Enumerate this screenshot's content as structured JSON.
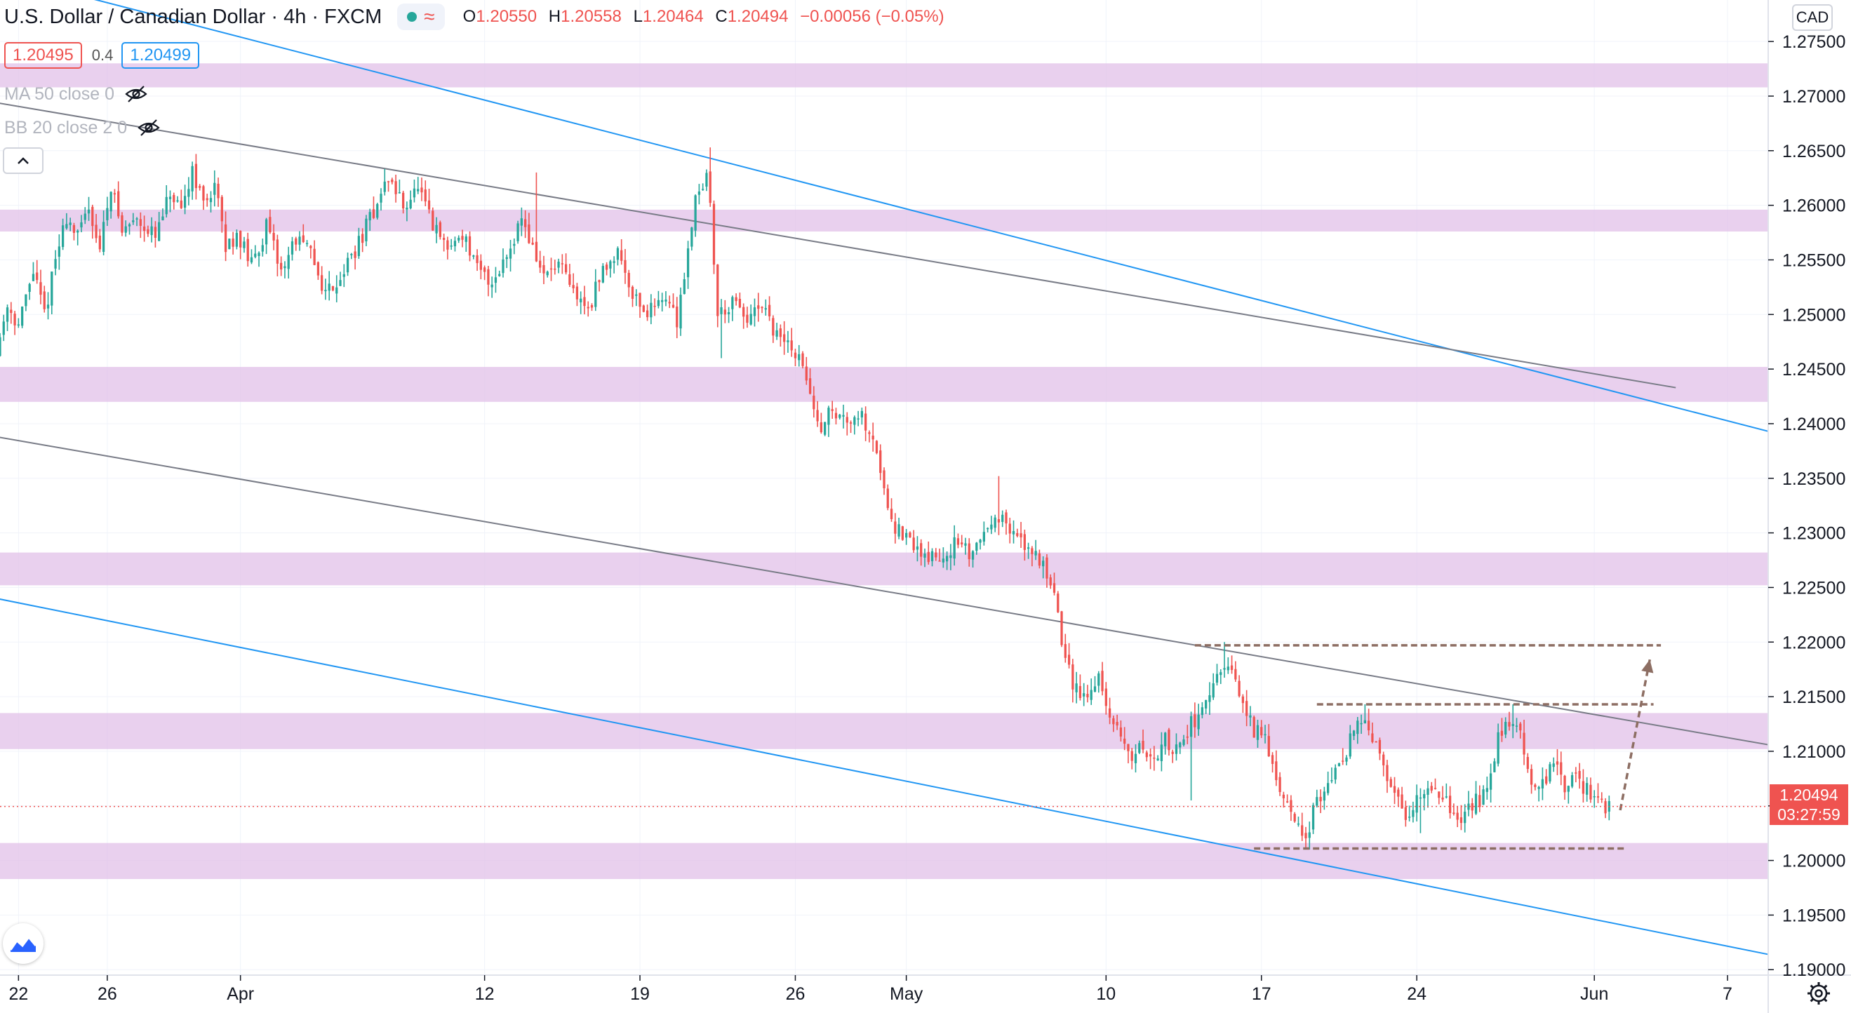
{
  "header": {
    "title": "U.S. Dollar / Canadian Dollar · 4h · FXCM",
    "ohlc": [
      {
        "k": "O",
        "v": "1.20550"
      },
      {
        "k": "H",
        "v": "1.20558"
      },
      {
        "k": "L",
        "v": "1.20464"
      },
      {
        "k": "C",
        "v": "1.20494"
      },
      {
        "k": "",
        "v": "−0.00056 (−0.05%)"
      }
    ],
    "bid": "1.20495",
    "spread": "0.4",
    "ask": "1.20499"
  },
  "indicators": [
    {
      "name": "MA 50 close 0"
    },
    {
      "name": "BB 20 close 2 0"
    }
  ],
  "currency": "CAD",
  "price_label": {
    "price": "1.20494",
    "countdown": "03:27:59"
  },
  "colors": {
    "up": "#26a69a",
    "down": "#ef5350",
    "zone": "#e1bee7",
    "blue_line": "#2196f3",
    "grey_line": "#787b86",
    "dashed": "#8d6e63"
  },
  "chart_data": {
    "type": "candlestick",
    "symbol": "USDCAD",
    "timeframe": "4h",
    "y_ticks": [
      "1.27500",
      "1.27000",
      "1.26500",
      "1.26000",
      "1.25500",
      "1.25000",
      "1.24500",
      "1.24000",
      "1.23500",
      "1.23000",
      "1.22500",
      "1.22000",
      "1.21500",
      "1.21000",
      "1.20500",
      "1.20000",
      "1.19500",
      "1.19000"
    ],
    "ylim": [
      1.1895,
      1.2788
    ],
    "x_range": [
      "2021-03-21T04:00",
      "2021-06-08T20:00"
    ],
    "x_ticks": [
      {
        "label": "22",
        "date": "2021-03-22"
      },
      {
        "label": "26",
        "date": "2021-03-26"
      },
      {
        "label": "Apr",
        "date": "2021-04-01"
      },
      {
        "label": "12",
        "date": "2021-04-12"
      },
      {
        "label": "19",
        "date": "2021-04-19"
      },
      {
        "label": "26",
        "date": "2021-04-26"
      },
      {
        "label": "May",
        "date": "2021-05-01"
      },
      {
        "label": "10",
        "date": "2021-05-10"
      },
      {
        "label": "17",
        "date": "2021-05-17"
      },
      {
        "label": "24",
        "date": "2021-05-24"
      },
      {
        "label": "Jun",
        "date": "2021-06-01"
      },
      {
        "label": "7",
        "date": "2021-06-07"
      }
    ],
    "zones": [
      {
        "from": 1.2708,
        "to": 1.273
      },
      {
        "from": 1.2576,
        "to": 1.2596
      },
      {
        "from": 1.242,
        "to": 1.2452
      },
      {
        "from": 1.2252,
        "to": 1.2282
      },
      {
        "from": 1.2102,
        "to": 1.2135
      },
      {
        "from": 1.1983,
        "to": 1.2016
      }
    ],
    "trendlines": [
      {
        "style": "blue",
        "from": {
          "x": "2021-03-20",
          "y": 1.2817
        },
        "to": {
          "x": "2021-06-08T20:00",
          "y": 1.2393
        }
      },
      {
        "style": "blue",
        "from": {
          "x": "2021-03-21",
          "y": 1.224
        },
        "to": {
          "x": "2021-06-08T20:00",
          "y": 1.1914
        }
      },
      {
        "style": "grey",
        "from": {
          "x": "2021-03-21",
          "y": 1.2694
        },
        "to": {
          "x": "2021-06-04T16:00",
          "y": 1.2433
        }
      },
      {
        "style": "grey",
        "from": {
          "x": "2021-03-21",
          "y": 1.2388
        },
        "to": {
          "x": "2021-06-08T20:00",
          "y": 1.2106
        }
      }
    ],
    "dashed_levels": [
      {
        "y": 1.2197,
        "from": "2021-05-14",
        "to": "2021-06-04"
      },
      {
        "y": 1.2143,
        "from": "2021-05-19T12:00",
        "to": "2021-06-03T16:00"
      },
      {
        "y": 1.2011,
        "from": "2021-05-16T16:00",
        "to": "2021-06-02T08:00"
      }
    ],
    "projection": {
      "from": {
        "x": "2021-06-02T04:00",
        "y": 1.2046
      },
      "to": {
        "x": "2021-06-03T12:00",
        "y": 1.2184
      }
    },
    "last_price": 1.20494,
    "path": [
      [
        "2021-03-21T04:00",
        1.2465
      ],
      [
        "2021-03-21T16:00",
        1.251
      ],
      [
        "2021-03-22T04:00",
        1.249
      ],
      [
        "2021-03-22T20:00",
        1.254
      ],
      [
        "2021-03-23T08:00",
        1.25
      ],
      [
        "2021-03-23T20:00",
        1.255
      ],
      [
        "2021-03-24T08:00",
        1.259
      ],
      [
        "2021-03-24T20:00",
        1.257
      ],
      [
        "2021-03-25T08:00",
        1.26
      ],
      [
        "2021-03-25T20:00",
        1.256
      ],
      [
        "2021-03-26T08:00",
        1.262
      ],
      [
        "2021-03-26T20:00",
        1.2575
      ],
      [
        "2021-03-27T12:00",
        1.259
      ],
      [
        "2021-03-28T08:00",
        1.257
      ],
      [
        "2021-03-29T00:00",
        1.261
      ],
      [
        "2021-03-29T12:00",
        1.259
      ],
      [
        "2021-03-30T00:00",
        1.2635
      ],
      [
        "2021-03-30T12:00",
        1.26
      ],
      [
        "2021-03-31T00:00",
        1.262
      ],
      [
        "2021-03-31T12:00",
        1.256
      ],
      [
        "2021-04-01T00:00",
        1.2575
      ],
      [
        "2021-04-01T16:00",
        1.2545
      ],
      [
        "2021-04-02T08:00",
        1.258
      ],
      [
        "2021-04-03T00:00",
        1.254
      ],
      [
        "2021-04-03T16:00",
        1.257
      ],
      [
        "2021-04-04T08:00",
        1.2555
      ],
      [
        "2021-04-05T00:00",
        1.252
      ],
      [
        "2021-04-05T16:00",
        1.2535
      ],
      [
        "2021-04-06T12:00",
        1.2565
      ],
      [
        "2021-04-07T04:00",
        1.2595
      ],
      [
        "2021-04-07T20:00",
        1.2625
      ],
      [
        "2021-04-08T12:00",
        1.26
      ],
      [
        "2021-04-09T04:00",
        1.2615
      ],
      [
        "2021-04-09T20:00",
        1.258
      ],
      [
        "2021-04-10T12:00",
        1.256
      ],
      [
        "2021-04-11T04:00",
        1.2575
      ],
      [
        "2021-04-11T20:00",
        1.254
      ],
      [
        "2021-04-12T12:00",
        1.253
      ],
      [
        "2021-04-13T04:00",
        1.2555
      ],
      [
        "2021-04-13T20:00",
        1.259
      ],
      [
        "2021-04-14T08:00",
        1.256
      ],
      [
        "2021-04-14T20:00",
        1.2535
      ],
      [
        "2021-04-15T12:00",
        1.2545
      ],
      [
        "2021-04-16T04:00",
        1.252
      ],
      [
        "2021-04-16T20:00",
        1.2505
      ],
      [
        "2021-04-17T12:00",
        1.254
      ],
      [
        "2021-04-18T04:00",
        1.256
      ],
      [
        "2021-04-18T20:00",
        1.252
      ],
      [
        "2021-04-19T12:00",
        1.25
      ],
      [
        "2021-04-20T04:00",
        1.252
      ],
      [
        "2021-04-20T20:00",
        1.2495
      ],
      [
        "2021-04-21T08:00",
        1.256
      ],
      [
        "2021-04-21T16:00",
        1.261
      ],
      [
        "2021-04-22T04:00",
        1.2625
      ],
      [
        "2021-04-22T08:00",
        1.26
      ],
      [
        "2021-04-22T16:00",
        1.25
      ],
      [
        "2021-04-23T08:00",
        1.251
      ],
      [
        "2021-04-24T00:00",
        1.2495
      ],
      [
        "2021-04-24T16:00",
        1.2505
      ],
      [
        "2021-04-25T08:00",
        1.248
      ],
      [
        "2021-04-26T00:00",
        1.247
      ],
      [
        "2021-04-26T16:00",
        1.2445
      ],
      [
        "2021-04-27T04:00",
        1.2395
      ],
      [
        "2021-04-27T16:00",
        1.241
      ],
      [
        "2021-04-28T08:00",
        1.2405
      ],
      [
        "2021-04-29T00:00",
        1.241
      ],
      [
        "2021-04-29T16:00",
        1.239
      ],
      [
        "2021-04-30T04:00",
        1.234
      ],
      [
        "2021-04-30T16:00",
        1.2305
      ],
      [
        "2021-05-01T08:00",
        1.229
      ],
      [
        "2021-05-02T00:00",
        1.228
      ],
      [
        "2021-05-02T16:00",
        1.2275
      ],
      [
        "2021-05-03T08:00",
        1.229
      ],
      [
        "2021-05-04T00:00",
        1.228
      ],
      [
        "2021-05-04T16:00",
        1.23
      ],
      [
        "2021-05-05T04:00",
        1.232
      ],
      [
        "2021-05-05T16:00",
        1.2305
      ],
      [
        "2021-05-06T08:00",
        1.229
      ],
      [
        "2021-05-06T20:00",
        1.2285
      ],
      [
        "2021-05-07T08:00",
        1.227
      ],
      [
        "2021-05-07T20:00",
        1.225
      ],
      [
        "2021-05-08T04:00",
        1.22
      ],
      [
        "2021-05-08T16:00",
        1.216
      ],
      [
        "2021-05-09T08:00",
        1.215
      ],
      [
        "2021-05-09T20:00",
        1.217
      ],
      [
        "2021-05-10T08:00",
        1.213
      ],
      [
        "2021-05-10T20:00",
        1.211
      ],
      [
        "2021-05-11T08:00",
        1.2095
      ],
      [
        "2021-05-11T20:00",
        1.2105
      ],
      [
        "2021-05-12T08:00",
        1.209
      ],
      [
        "2021-05-12T20:00",
        1.211
      ],
      [
        "2021-05-13T08:00",
        1.21
      ],
      [
        "2021-05-13T20:00",
        1.212
      ],
      [
        "2021-05-14T08:00",
        1.2135
      ],
      [
        "2021-05-14T20:00",
        1.215
      ],
      [
        "2021-05-15T08:00",
        1.217
      ],
      [
        "2021-05-15T20:00",
        1.2175
      ],
      [
        "2021-05-16T08:00",
        1.214
      ],
      [
        "2021-05-16T20:00",
        1.212
      ],
      [
        "2021-05-17T08:00",
        1.211
      ],
      [
        "2021-05-17T20:00",
        1.208
      ],
      [
        "2021-05-18T08:00",
        1.205
      ],
      [
        "2021-05-18T20:00",
        1.203
      ],
      [
        "2021-05-19T04:00",
        1.202
      ],
      [
        "2021-05-19T16:00",
        1.2055
      ],
      [
        "2021-05-20T04:00",
        1.2075
      ],
      [
        "2021-05-20T16:00",
        1.2085
      ],
      [
        "2021-05-21T04:00",
        1.211
      ],
      [
        "2021-05-21T16:00",
        1.213
      ],
      [
        "2021-05-22T08:00",
        1.2105
      ],
      [
        "2021-05-22T20:00",
        1.207
      ],
      [
        "2021-05-23T08:00",
        1.206
      ],
      [
        "2021-05-23T20:00",
        1.2035
      ],
      [
        "2021-05-24T08:00",
        1.2065
      ],
      [
        "2021-05-24T20:00",
        1.207
      ],
      [
        "2021-05-25T08:00",
        1.206
      ],
      [
        "2021-05-25T20:00",
        1.2045
      ],
      [
        "2021-05-26T08:00",
        1.204
      ],
      [
        "2021-05-26T20:00",
        1.2055
      ],
      [
        "2021-05-27T08:00",
        1.206
      ],
      [
        "2021-05-27T20:00",
        1.211
      ],
      [
        "2021-05-28T08:00",
        1.213
      ],
      [
        "2021-05-28T20:00",
        1.2115
      ],
      [
        "2021-05-29T08:00",
        1.2075
      ],
      [
        "2021-05-29T20:00",
        1.207
      ],
      [
        "2021-05-30T08:00",
        1.209
      ],
      [
        "2021-05-30T20:00",
        1.2065
      ],
      [
        "2021-05-31T08:00",
        1.2075
      ],
      [
        "2021-05-31T20:00",
        1.2065
      ],
      [
        "2021-06-01T08:00",
        1.2058
      ],
      [
        "2021-06-01T16:00",
        1.2049
      ]
    ],
    "extremes": [
      {
        "date": "2021-03-30T00:00",
        "high": 1.2647
      },
      {
        "date": "2021-04-14T08:00",
        "high": 1.263
      },
      {
        "date": "2021-04-22T04:00",
        "high": 1.2653
      },
      {
        "date": "2021-04-22T16:00",
        "low": 1.246
      },
      {
        "date": "2021-05-05T04:00",
        "high": 1.2352
      },
      {
        "date": "2021-05-15T08:00",
        "high": 1.22
      },
      {
        "date": "2021-05-13T20:00",
        "low": 1.2055
      },
      {
        "date": "2021-05-19T04:00",
        "low": 1.201
      },
      {
        "date": "2021-05-21T16:00",
        "high": 1.2143
      },
      {
        "date": "2021-05-28T08:00",
        "high": 1.2143
      },
      {
        "date": "2021-05-24T04:00",
        "low": 1.2025
      }
    ]
  }
}
